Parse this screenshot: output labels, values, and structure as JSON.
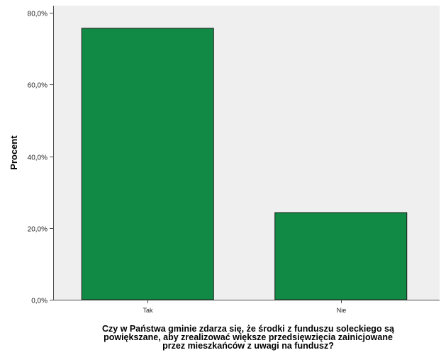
{
  "chart_data": {
    "type": "bar",
    "categories": [
      "Tak",
      "Nie"
    ],
    "values": [
      75.7,
      24.3
    ],
    "ylabel": "Procent",
    "xlabel_lines": [
      "Czy w Państwa gminie zdarza się, że środki z funduszu soleckiego są",
      "powiększane, aby zrealizować większe przedsięwzięcia zainicjowane",
      "przez mieszkańców z uwagi na fundusz?"
    ],
    "ylim": [
      0,
      82
    ],
    "yticks": [
      0,
      20,
      40,
      60,
      80
    ],
    "ytick_labels": [
      "0,0%",
      "20,0%",
      "40,0%",
      "60,0%",
      "80,0%"
    ],
    "grid": false,
    "colors": {
      "bar": "#118a45",
      "bar_edge": "#1c1c1c",
      "plot_bg": "#efefef",
      "axis": "#4a4a4a"
    }
  }
}
